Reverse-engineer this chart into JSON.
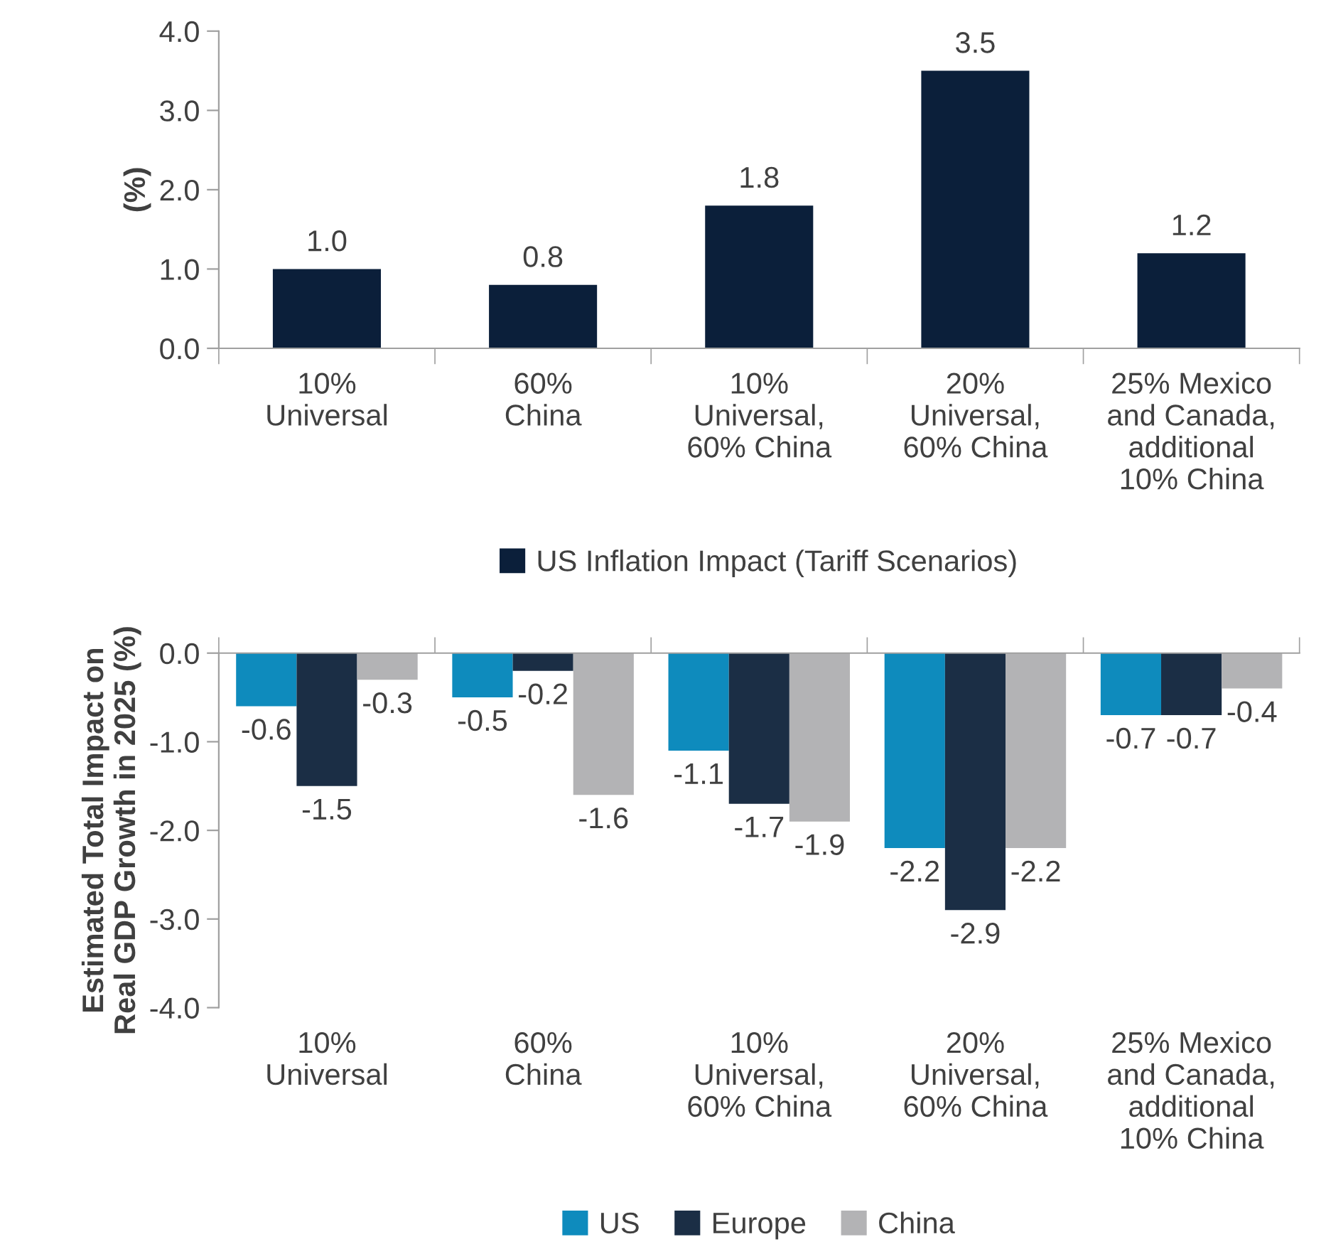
{
  "chart_data": [
    {
      "type": "bar",
      "ylabel": "(%)",
      "categories": [
        "10%\nUniversal",
        "60%\nChina",
        "10%\nUniversal,\n60% China",
        "20%\nUniversal,\n60% China",
        "25% Mexico\nand Canada,\nadditional\n10% China"
      ],
      "series": [
        {
          "name": "US Inflation Impact (Tariff Scenarios)",
          "color": "#0b1f3a",
          "values": [
            1.0,
            0.8,
            1.8,
            3.5,
            1.2
          ],
          "value_labels": [
            "1.0",
            "0.8",
            "1.8",
            "3.5",
            "1.2"
          ]
        }
      ],
      "ylim": [
        0,
        4
      ],
      "yticks": [
        {
          "value": 0,
          "label": "0.0"
        },
        {
          "value": 1,
          "label": "1.0"
        },
        {
          "value": 2,
          "label": "2.0"
        },
        {
          "value": 3,
          "label": "3.0"
        },
        {
          "value": 4,
          "label": "4.0"
        }
      ],
      "legend": "bottom",
      "grid": false
    },
    {
      "type": "bar",
      "ylabel": "Estimated Total Impact on\nReal GDP Growth in 2025 (%)",
      "categories": [
        "10%\nUniversal",
        "60%\nChina",
        "10%\nUniversal,\n60% China",
        "20%\nUniversal,\n60% China",
        "25% Mexico\nand Canada,\nadditional\n10% China"
      ],
      "series": [
        {
          "name": "US",
          "color": "#0e8bbd",
          "values": [
            -0.6,
            -0.5,
            -1.1,
            -2.2,
            -0.7
          ],
          "value_labels": [
            "-0.6",
            "-0.5",
            "-1.1",
            "-2.2",
            "-0.7"
          ]
        },
        {
          "name": "Europe",
          "color": "#1b2e45",
          "values": [
            -1.5,
            -0.2,
            -1.7,
            -2.9,
            -0.7
          ],
          "value_labels": [
            "-1.5",
            "-0.2",
            "-1.7",
            "-2.9",
            "-0.7"
          ]
        },
        {
          "name": "China",
          "color": "#b3b3b5",
          "values": [
            -0.3,
            -1.6,
            -1.9,
            -2.2,
            -0.4
          ],
          "value_labels": [
            "-0.3",
            "-1.6",
            "-1.9",
            "-2.2",
            "-0.4"
          ]
        }
      ],
      "ylim": [
        -4,
        0
      ],
      "yticks": [
        {
          "value": -4,
          "label": "-4.0"
        },
        {
          "value": -3,
          "label": "-3.0"
        },
        {
          "value": -2,
          "label": "-2.0"
        },
        {
          "value": -1,
          "label": "-1.0"
        },
        {
          "value": 0,
          "label": "0.0"
        }
      ],
      "legend": "bottom",
      "grid": false
    }
  ]
}
